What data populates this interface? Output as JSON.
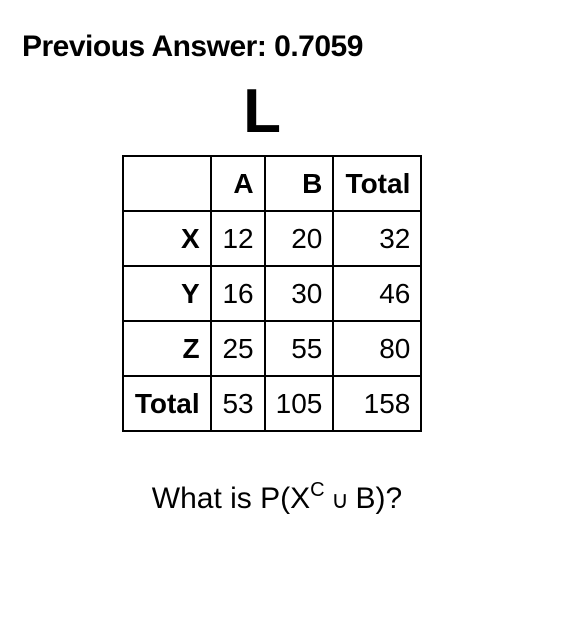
{
  "title": "Previous Answer: 0.7059",
  "big_letter": "L",
  "table": {
    "col_headers": [
      "A",
      "B",
      "Total"
    ],
    "row_labels": [
      "X",
      "Y",
      "Z",
      "Total"
    ],
    "rows": [
      [
        "12",
        "20",
        "32"
      ],
      [
        "16",
        "30",
        "46"
      ],
      [
        "25",
        "55",
        "80"
      ],
      [
        "53",
        "105",
        "158"
      ]
    ]
  },
  "question": {
    "prefix": "What is P(X",
    "sup": "C",
    "union": " ∪ ",
    "suffix": "B)?"
  }
}
